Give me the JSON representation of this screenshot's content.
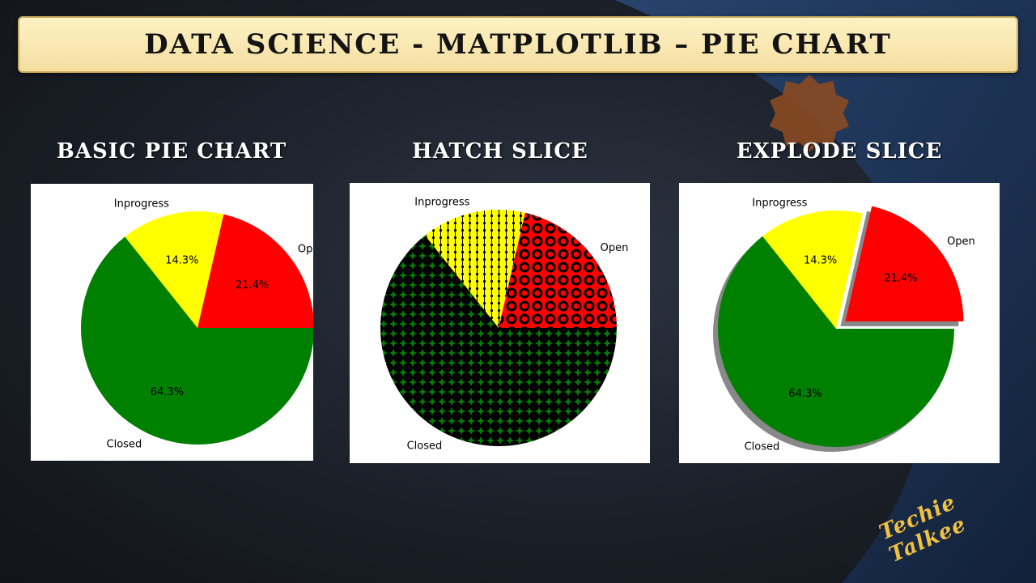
{
  "banner": {
    "title": "Data Science - Matplotlib – Pie Chart"
  },
  "brand": "Techie Talkee",
  "colors": {
    "open": "#ff0000",
    "inprogress": "#ffff00",
    "closed": "#008000"
  },
  "chart_data": [
    {
      "type": "pie",
      "title": "Basic Pie Chart",
      "labels": [
        "Open",
        "Inprogress",
        "Closed"
      ],
      "values": [
        21.4,
        14.3,
        64.3
      ],
      "value_labels": [
        "21.4%",
        "14.3%",
        "64.3%"
      ],
      "start_angle": 0,
      "counterclock": true,
      "explode": [
        0,
        0,
        0
      ],
      "hatch": false,
      "shadow": false
    },
    {
      "type": "pie",
      "title": "Hatch Slice",
      "labels": [
        "Open",
        "Inprogress",
        "Closed"
      ],
      "values": [
        21.4,
        14.3,
        64.3
      ],
      "value_labels": [
        "",
        "",
        ""
      ],
      "start_angle": 0,
      "counterclock": true,
      "explode": [
        0,
        0,
        0
      ],
      "hatch": true,
      "shadow": false
    },
    {
      "type": "pie",
      "title": "Explode Slice",
      "labels": [
        "Open",
        "Inprogress",
        "Closed"
      ],
      "values": [
        21.4,
        14.3,
        64.3
      ],
      "value_labels": [
        "21.4%",
        "14.3%",
        "64.3%"
      ],
      "start_angle": 0,
      "counterclock": true,
      "explode": [
        0.1,
        0,
        0
      ],
      "hatch": false,
      "shadow": true
    }
  ]
}
